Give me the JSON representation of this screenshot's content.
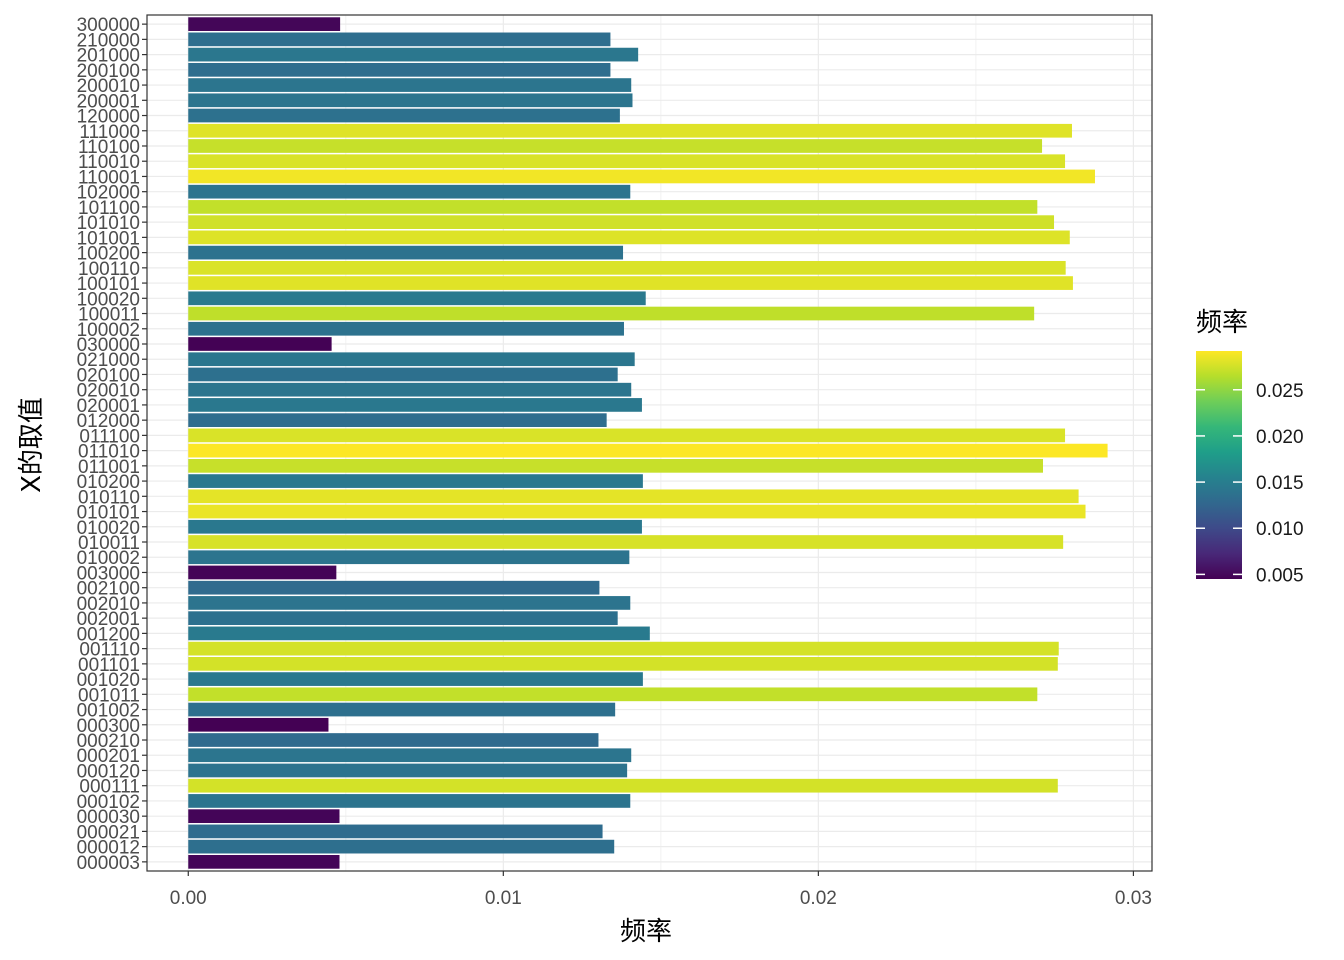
{
  "chart_data": {
    "type": "bar",
    "orientation": "horizontal",
    "xlabel": "频率",
    "ylabel": "X的取值",
    "xlim": [
      -0.00131,
      0.03059
    ],
    "x_ticks": [
      0.0,
      0.01,
      0.02,
      0.03
    ],
    "x_tick_labels": [
      "0.00",
      "0.01",
      "0.02",
      "0.03"
    ],
    "grid": true,
    "legend": {
      "title": "频率",
      "position": "right",
      "type": "colorbar",
      "palette": "viridis",
      "range": [
        0.0045,
        0.0292
      ],
      "ticks": [
        0.005,
        0.01,
        0.015,
        0.02,
        0.025
      ],
      "tick_labels": [
        "0.005",
        "0.010",
        "0.015",
        "0.020",
        "0.025"
      ]
    },
    "categories": [
      "300000",
      "210000",
      "201000",
      "200100",
      "200010",
      "200001",
      "120000",
      "111000",
      "110100",
      "110010",
      "110001",
      "102000",
      "101100",
      "101010",
      "101001",
      "100200",
      "100110",
      "100101",
      "100020",
      "100011",
      "100002",
      "030000",
      "021000",
      "020100",
      "020010",
      "020001",
      "012000",
      "011100",
      "011010",
      "011001",
      "010200",
      "010110",
      "010101",
      "010020",
      "010011",
      "010002",
      "003000",
      "002100",
      "002010",
      "002001",
      "001200",
      "001110",
      "001101",
      "001020",
      "001011",
      "001002",
      "000300",
      "000210",
      "000201",
      "000120",
      "000111",
      "000102",
      "000030",
      "000021",
      "000012",
      "000003"
    ],
    "values": [
      0.00482,
      0.0134,
      0.01428,
      0.0134,
      0.01406,
      0.0141,
      0.0137,
      0.02805,
      0.0271,
      0.02783,
      0.02878,
      0.01403,
      0.02695,
      0.02748,
      0.02798,
      0.0138,
      0.02785,
      0.02808,
      0.01452,
      0.02685,
      0.01383,
      0.00455,
      0.01417,
      0.01363,
      0.01406,
      0.0144,
      0.01328,
      0.02783,
      0.02918,
      0.02713,
      0.01443,
      0.02826,
      0.02848,
      0.0144,
      0.02777,
      0.014,
      0.0047,
      0.01305,
      0.01403,
      0.01363,
      0.01465,
      0.02763,
      0.0276,
      0.01443,
      0.02695,
      0.01355,
      0.00445,
      0.01302,
      0.01406,
      0.01393,
      0.0276,
      0.01403,
      0.0048,
      0.01315,
      0.01352,
      0.0048
    ]
  }
}
